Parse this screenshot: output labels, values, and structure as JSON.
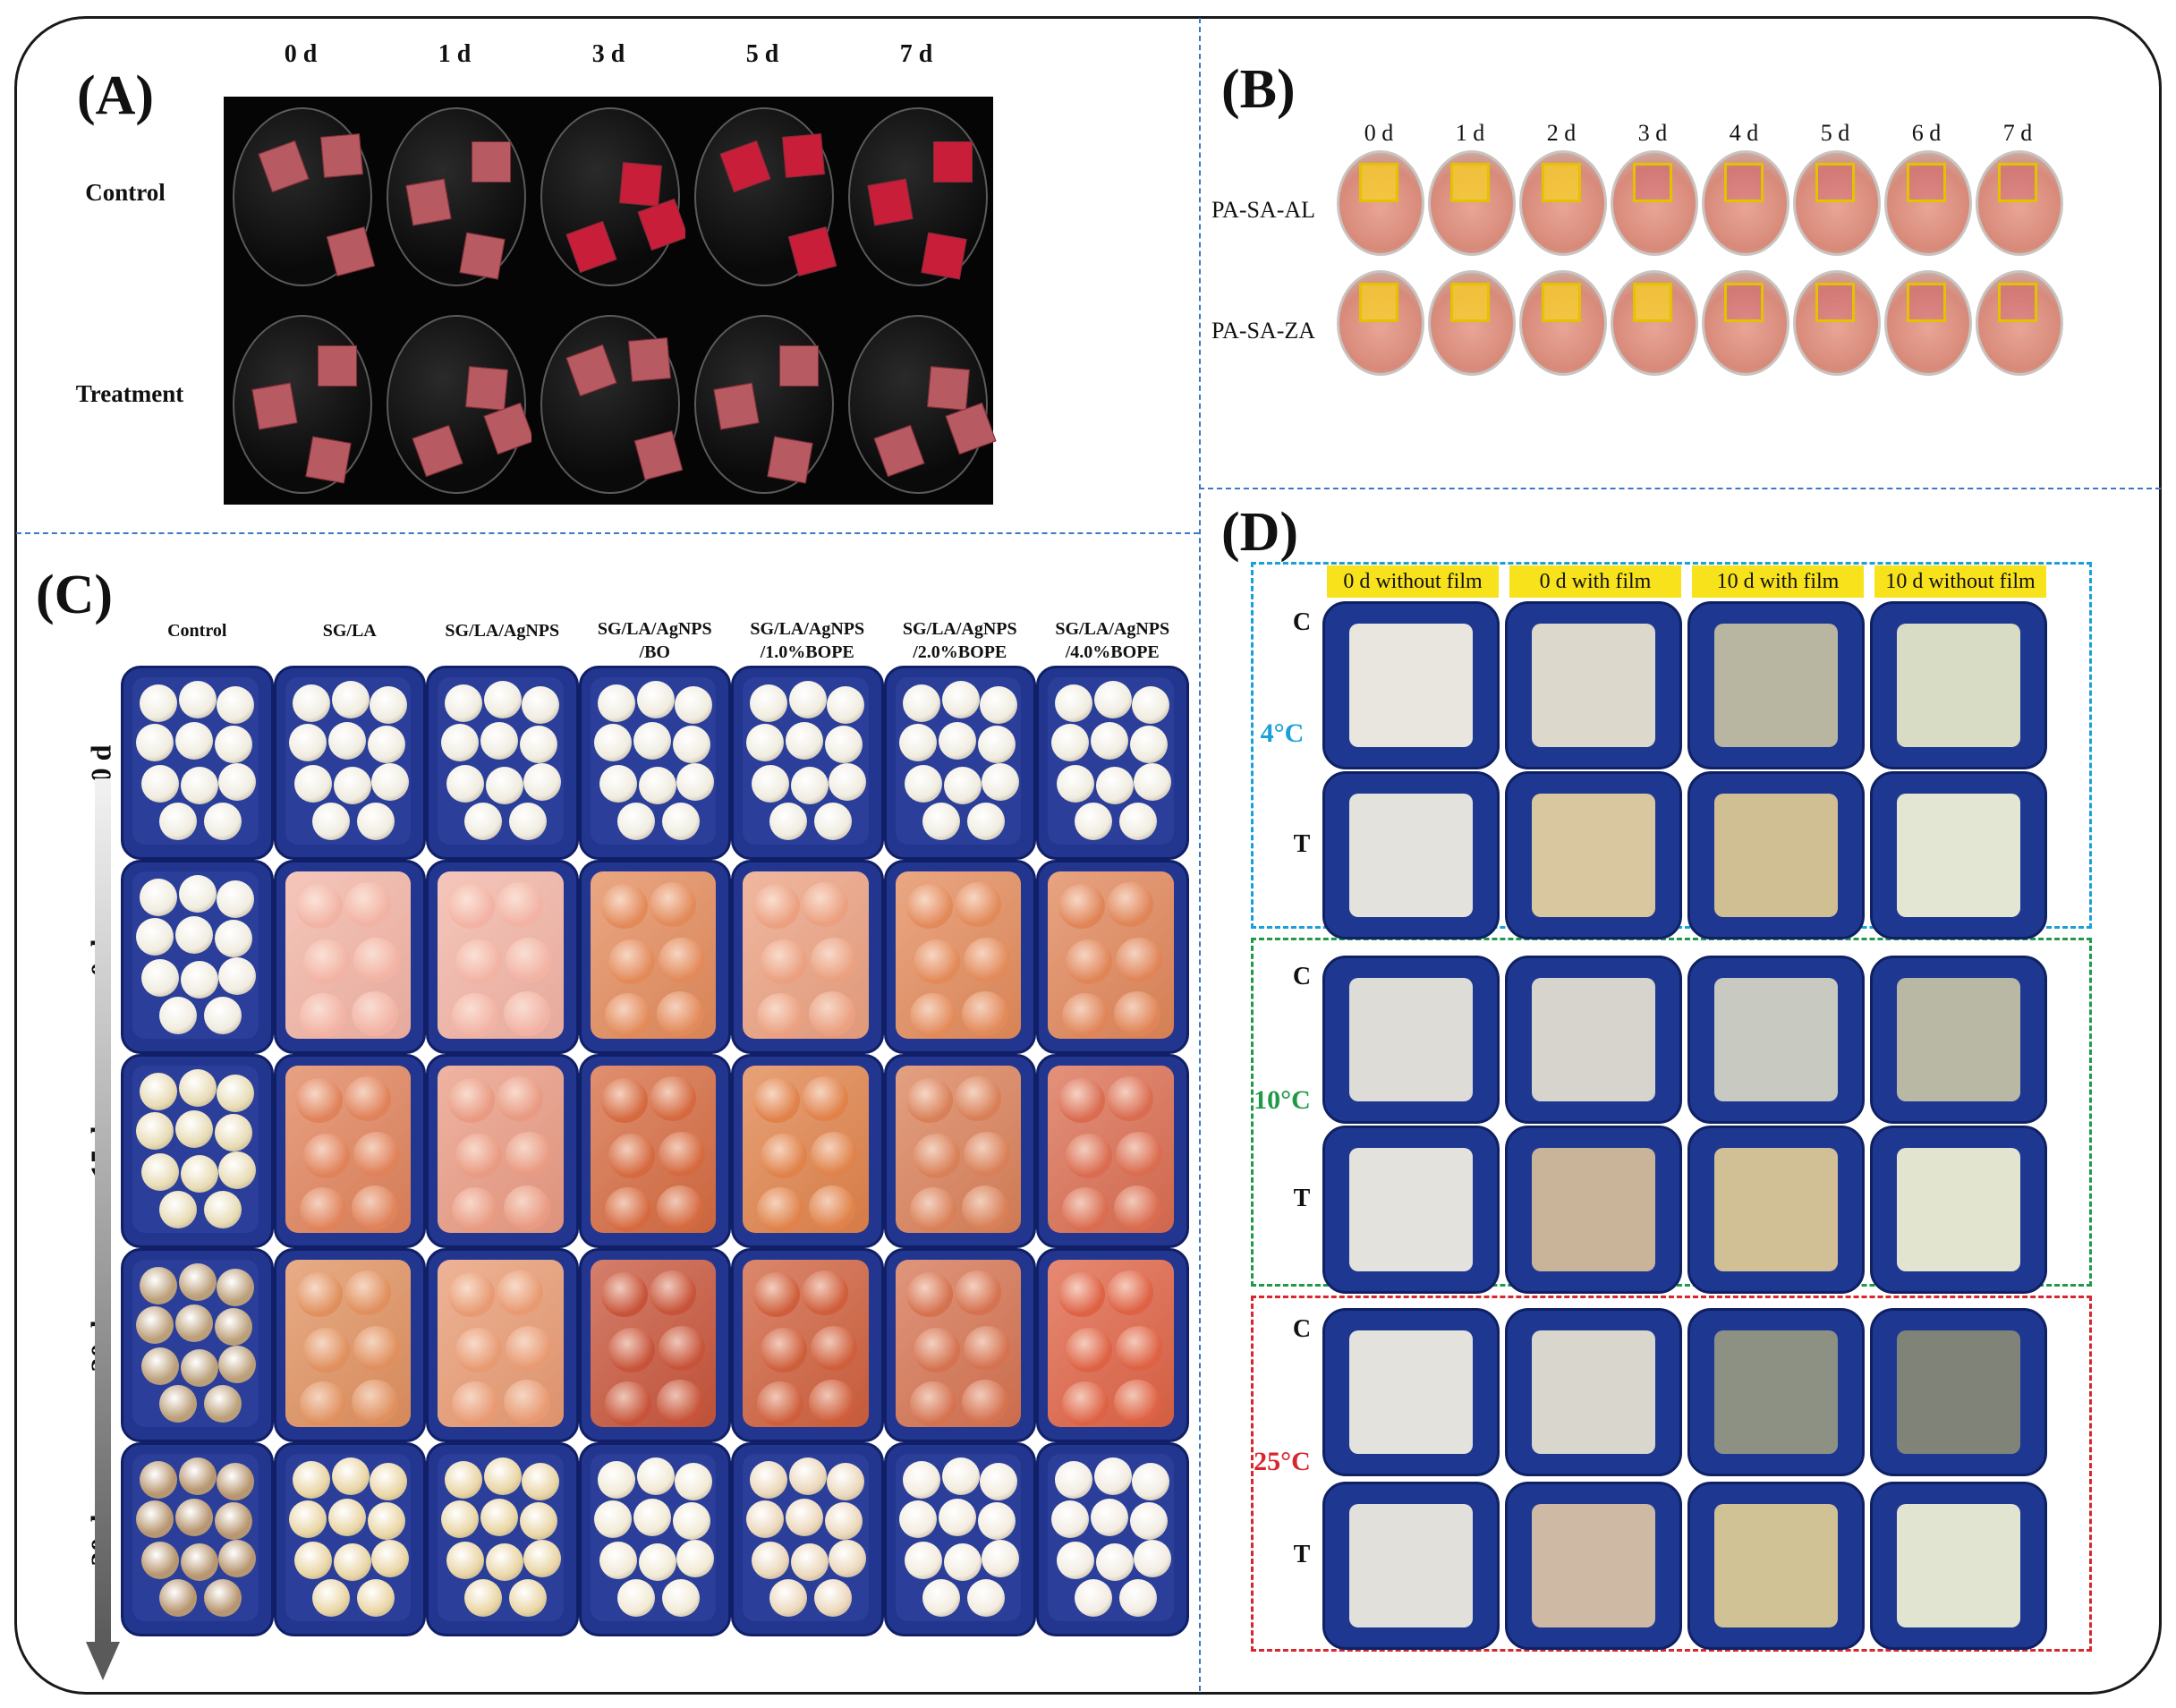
{
  "panel_a": {
    "label": "(A)",
    "days": [
      "0 d",
      "1 d",
      "3 d",
      "5 d",
      "7 d"
    ],
    "rows": [
      "Control",
      "Treatment"
    ]
  },
  "panel_b": {
    "label": "(B)",
    "days": [
      "0 d",
      "1 d",
      "2 d",
      "3 d",
      "4 d",
      "5 d",
      "6 d",
      "7 d"
    ],
    "rows": [
      "PA-SA-AL",
      "PA-SA-ZA"
    ]
  },
  "panel_c": {
    "label": "(C)",
    "columns": [
      "Control",
      "SG/LA",
      "SG/LA/AgNPS",
      "SG/LA/AgNPS\n/BO",
      "SG/LA/AgNPS\n/1.0%BOPE",
      "SG/LA/AgNPS\n/2.0%BOPE",
      "SG/LA/AgNPS\n/4.0%BOPE"
    ],
    "rows": [
      "0 d",
      "0 d",
      "15 d",
      "30 d",
      "30 d"
    ]
  },
  "panel_d": {
    "label": "(D)",
    "columns": [
      "0 d without film",
      "0 d with film",
      "10 d with film",
      "10 d without film"
    ],
    "groups": [
      {
        "temp": "4°C",
        "color": "#1aa0d8"
      },
      {
        "temp": "10°C",
        "color": "#1f9a4a"
      },
      {
        "temp": "25°C",
        "color": "#d8262e"
      }
    ],
    "row_labels": [
      "C",
      "T"
    ]
  }
}
